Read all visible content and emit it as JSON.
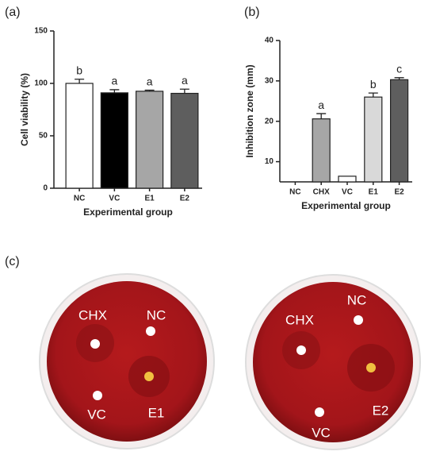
{
  "chart_data": [
    {
      "type": "bar",
      "panel": "(a)",
      "ylabel": "Cell viability (%)",
      "xlabel": "Experimental group",
      "categories": [
        "NC",
        "VC",
        "E1",
        "E2"
      ],
      "values": [
        100,
        91,
        92.5,
        90.5
      ],
      "errors": [
        4,
        3,
        1,
        4
      ],
      "annotations": [
        "b",
        "a",
        "a",
        "a"
      ],
      "colors": [
        "#ffffff",
        "#000000",
        "#a6a6a6",
        "#5e5e5e"
      ],
      "ylim": [
        0,
        150
      ],
      "yticks": [
        0,
        50,
        100,
        150
      ],
      "grid": false
    },
    {
      "type": "bar",
      "panel": "(b)",
      "ylabel": "Inhibition zone (mm)",
      "xlabel": "Experimental group",
      "categories": [
        "NC",
        "CHX",
        "VC",
        "E1",
        "E2"
      ],
      "values": [
        null,
        20.6,
        6.4,
        26,
        30.3
      ],
      "errors": [
        null,
        1.3,
        null,
        1,
        0.5
      ],
      "annotations": [
        null,
        "a",
        null,
        "b",
        "c"
      ],
      "colors": [
        "#ffffff",
        "#a6a6a6",
        "#ffffff",
        "#d9d9d9",
        "#5e5e5e"
      ],
      "ylim": [
        5,
        40
      ],
      "yticks": [
        10,
        20,
        30,
        40
      ],
      "grid": false
    }
  ],
  "panel_c": {
    "label": "(c)",
    "plates": [
      {
        "labels": [
          "CHX",
          "NC",
          "E1",
          "VC"
        ]
      },
      {
        "labels": [
          "CHX",
          "NC",
          "E2",
          "VC"
        ]
      }
    ]
  }
}
